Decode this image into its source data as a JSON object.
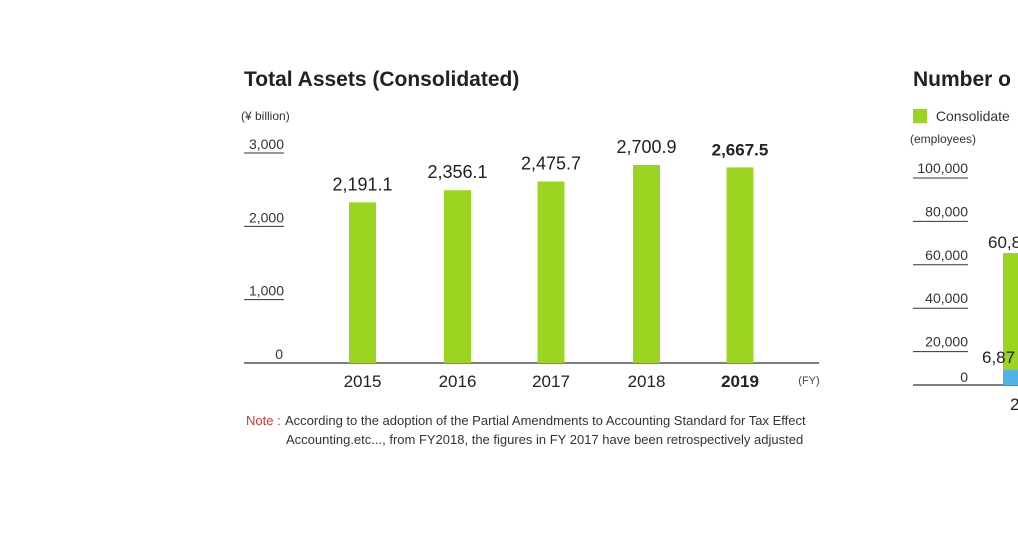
{
  "colors": {
    "bar": "#9bd421",
    "bar2": "#4fb3e8",
    "axis": "#333333",
    "note_label": "#e03030"
  },
  "left_chart": {
    "title": "Total Assets (Consolidated)",
    "unit": "(¥ billion)",
    "fy_label": "(FY)",
    "note_label": "Note :",
    "note_text": "According to the adoption of the Partial Amendments to Accounting Standard for Tax Effect Accounting.etc..., from FY2018, the figures in FY 2017 have been retrospectively adjusted"
  },
  "right_chart": {
    "title": "Number o",
    "legend_label": "Consolidate",
    "unit": "(employees)"
  },
  "chart_data": [
    {
      "type": "bar",
      "title": "Total Assets (Consolidated)",
      "ylabel": "(¥ billion)",
      "xlabel": "(FY)",
      "categories": [
        "2015",
        "2016",
        "2017",
        "2018",
        "2019"
      ],
      "values": [
        2191.1,
        2356.1,
        2475.7,
        2700.9,
        2667.5
      ],
      "value_labels": [
        "2,191.1",
        "2,356.1",
        "2,475.7",
        "2,700.9",
        "2,667.5"
      ],
      "yticks": [
        0,
        1000,
        2000,
        3000
      ],
      "ytick_labels": [
        "0",
        "1,000",
        "2,000",
        "3,000"
      ],
      "ylim": [
        0,
        3000
      ],
      "highlight_category": "2019"
    },
    {
      "type": "bar",
      "title": "Number o",
      "ylabel": "(employees)",
      "legend": [
        "Consolidate"
      ],
      "categories": [
        "2"
      ],
      "series": [
        {
          "name": "Consolidate",
          "values": [
            60800
          ],
          "label": "60,8"
        },
        {
          "values": [
            6870
          ],
          "label": "6,87"
        }
      ],
      "yticks": [
        0,
        20000,
        40000,
        60000,
        80000,
        100000
      ],
      "ytick_labels": [
        "0",
        "20,000",
        "40,000",
        "60,000",
        "80,000",
        "100,000"
      ],
      "ylim": [
        0,
        100000
      ]
    }
  ]
}
